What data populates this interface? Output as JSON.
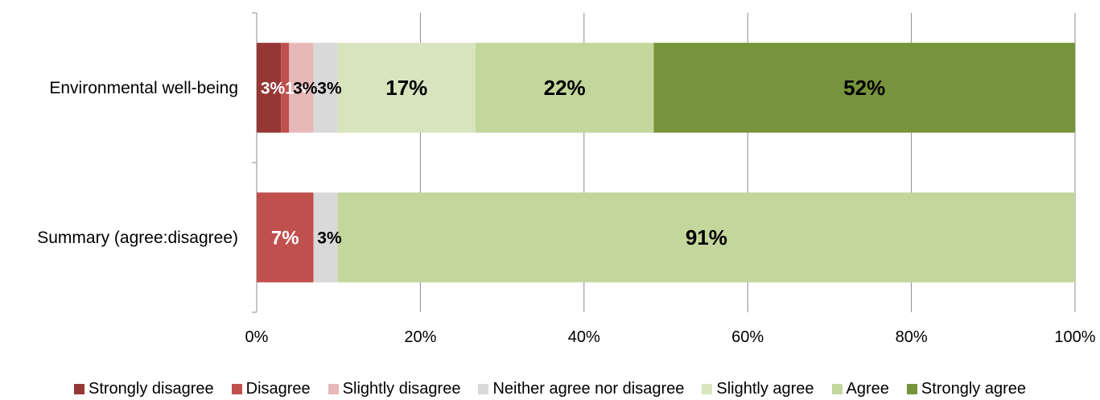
{
  "chart_data": {
    "type": "bar",
    "orientation": "horizontal",
    "stacked": "percent",
    "categories": [
      "Environmental well-being",
      "Summary (agree:disagree)"
    ],
    "series": [
      {
        "name": "Strongly disagree",
        "color": "#953735",
        "values": [
          3,
          0
        ],
        "labels": [
          "3%",
          ""
        ],
        "label_color": "#ffffff"
      },
      {
        "name": "Disagree",
        "color": "#C0504D",
        "values": [
          1,
          7
        ],
        "labels": [
          "1%",
          "7%"
        ],
        "label_color": "#ffffff"
      },
      {
        "name": "Slightly disagree",
        "color": "#E6B9B8",
        "values": [
          3,
          0
        ],
        "labels": [
          "3%",
          ""
        ],
        "label_color": "#000000"
      },
      {
        "name": "Neither agree nor disagree",
        "color": "#D9D9D9",
        "values": [
          3,
          3
        ],
        "labels": [
          "3%",
          "3%"
        ],
        "label_color": "#000000"
      },
      {
        "name": "Slightly agree",
        "color": "#D7E4BD",
        "values": [
          17,
          0
        ],
        "labels": [
          "17%",
          ""
        ],
        "label_color": "#000000"
      },
      {
        "name": "Agree",
        "color": "#C3D69B",
        "values": [
          22,
          91
        ],
        "labels": [
          "22%",
          "91%"
        ],
        "label_color": "#000000"
      },
      {
        "name": "Strongly agree",
        "color": "#77933C",
        "values": [
          52,
          0
        ],
        "labels": [
          "52%",
          ""
        ],
        "label_color": "#000000"
      }
    ],
    "xlim": [
      0,
      100
    ],
    "x_ticks": [
      "0%",
      "20%",
      "40%",
      "60%",
      "80%",
      "100%"
    ],
    "grid": true,
    "legend_position": "bottom",
    "title": "",
    "xlabel": "",
    "ylabel": ""
  }
}
